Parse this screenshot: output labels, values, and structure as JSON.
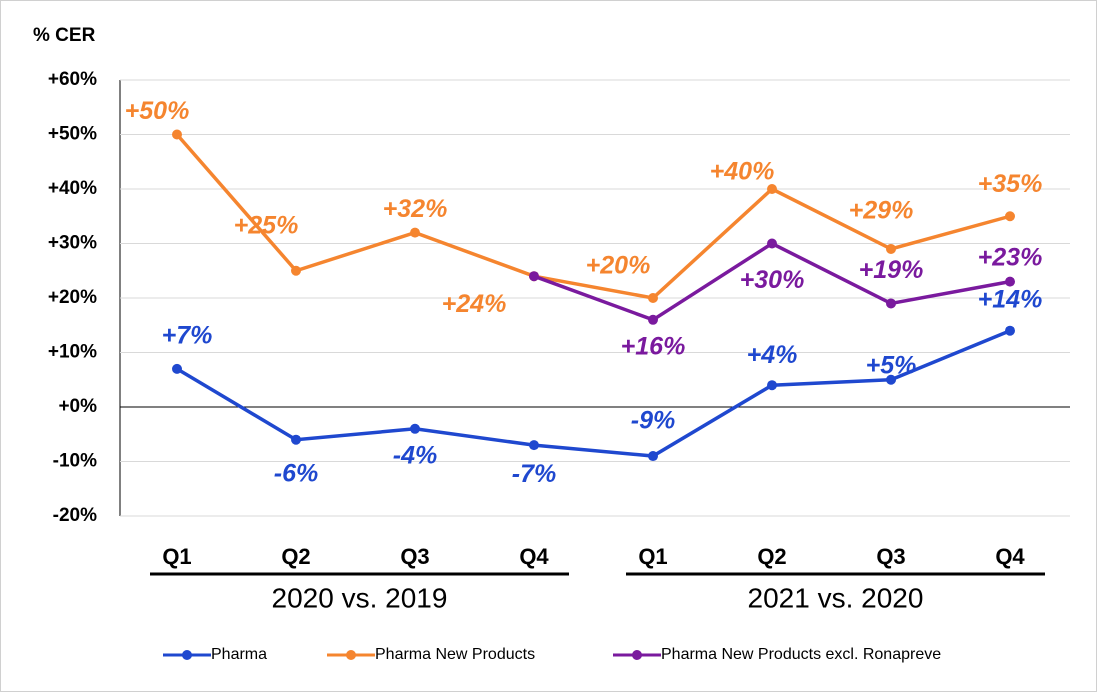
{
  "chart_data": {
    "type": "line",
    "y_axis_label": "% CER",
    "categories": [
      "Q1",
      "Q2",
      "Q3",
      "Q4",
      "Q1",
      "Q2",
      "Q3",
      "Q4"
    ],
    "groups": [
      {
        "label": "2020 vs. 2019",
        "span": [
          0,
          3
        ]
      },
      {
        "label": "2021 vs. 2020",
        "span": [
          4,
          7
        ]
      }
    ],
    "ylim": [
      -20,
      60
    ],
    "yticks": [
      {
        "value": -20,
        "label": "-20%"
      },
      {
        "value": -10,
        "label": "-10%"
      },
      {
        "value": 0,
        "label": "+0%"
      },
      {
        "value": 10,
        "label": "+10%"
      },
      {
        "value": 20,
        "label": "+20%"
      },
      {
        "value": 30,
        "label": "+30%"
      },
      {
        "value": 40,
        "label": "+40%"
      },
      {
        "value": 50,
        "label": "+50%"
      },
      {
        "value": 60,
        "label": "+60%"
      }
    ],
    "grid": true,
    "legend": "bottom",
    "series": [
      {
        "name": "Pharma",
        "color": "#1f48cf",
        "values": [
          7,
          -6,
          -4,
          -7,
          -9,
          4,
          5,
          14
        ],
        "value_labels": [
          "+7%",
          "-6%",
          "-4%",
          "-7%",
          "-9%",
          "+4%",
          "+5%",
          "+14%"
        ]
      },
      {
        "name": "Pharma New Products",
        "color": "#f5852f",
        "values": [
          50,
          25,
          32,
          24,
          20,
          40,
          29,
          35
        ],
        "value_labels": [
          "+50%",
          "+25%",
          "+32%",
          "+24%",
          "+20%",
          "+40%",
          "+29%",
          "+35%"
        ]
      },
      {
        "name": "Pharma New Products excl. Ronapreve",
        "color": "#7a1a9e",
        "values": [
          null,
          null,
          null,
          24,
          16,
          30,
          19,
          23
        ],
        "value_labels": [
          null,
          null,
          null,
          null,
          "+16%",
          "+30%",
          "+19%",
          "+23%"
        ]
      }
    ]
  }
}
